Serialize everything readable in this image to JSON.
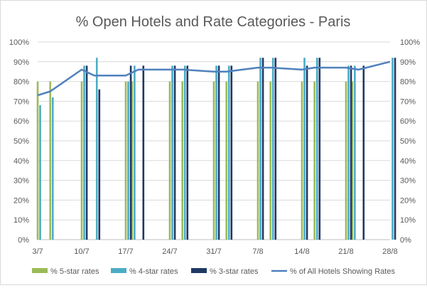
{
  "chart_data": {
    "type": "bar",
    "title": "% Open Hotels and Rate Categories - Paris",
    "xlabel": "",
    "ylabel": "",
    "ylim": [
      0,
      100
    ],
    "y_ticks": [
      "0%",
      "10%",
      "20%",
      "30%",
      "40%",
      "50%",
      "60%",
      "70%",
      "80%",
      "90%",
      "100%"
    ],
    "y_tick_values": [
      0,
      10,
      20,
      30,
      40,
      50,
      60,
      70,
      80,
      90,
      100
    ],
    "x_range": [
      3,
      59
    ],
    "x_tick_labels": [
      "3/7",
      "10/7",
      "17/7",
      "24/7",
      "31/7",
      "7/8",
      "14/8",
      "21/8",
      "28/8"
    ],
    "x_tick_positions": [
      3,
      10,
      17,
      24,
      31,
      38,
      45,
      52,
      59
    ],
    "legend_position": "bottom",
    "grid": true,
    "series": [
      {
        "name": "% 5-star rates",
        "type": "bar",
        "color": "#9bbb59",
        "points": [
          [
            3,
            80
          ],
          [
            5,
            80
          ],
          [
            10,
            80
          ],
          [
            17,
            80
          ],
          [
            18,
            80
          ],
          [
            24,
            80
          ],
          [
            26,
            80
          ],
          [
            31,
            80
          ],
          [
            33,
            80
          ],
          [
            38,
            80
          ],
          [
            40,
            80
          ],
          [
            45,
            80
          ],
          [
            47,
            80
          ],
          [
            52,
            80
          ],
          [
            53,
            80
          ]
        ]
      },
      {
        "name": "% 4-star rates",
        "type": "bar",
        "color": "#4bacc6",
        "points": [
          [
            3.4,
            68
          ],
          [
            5.4,
            72
          ],
          [
            10.4,
            88
          ],
          [
            12.4,
            92
          ],
          [
            17.4,
            80
          ],
          [
            18.4,
            88
          ],
          [
            24.4,
            88
          ],
          [
            26.4,
            88
          ],
          [
            31.4,
            88
          ],
          [
            33.4,
            88
          ],
          [
            38.4,
            92
          ],
          [
            40.4,
            92
          ],
          [
            45.4,
            92
          ],
          [
            47.4,
            92
          ],
          [
            52.4,
            88
          ],
          [
            53.4,
            88
          ],
          [
            59.4,
            92
          ]
        ]
      },
      {
        "name": "% 3-star rates",
        "type": "bar",
        "color": "#1f3864",
        "points": [
          [
            10.8,
            88
          ],
          [
            12.8,
            76
          ],
          [
            17.8,
            88
          ],
          [
            19.8,
            88
          ],
          [
            24.8,
            88
          ],
          [
            26.8,
            88
          ],
          [
            31.8,
            88
          ],
          [
            33.8,
            88
          ],
          [
            38.8,
            92
          ],
          [
            40.8,
            92
          ],
          [
            45.8,
            88
          ],
          [
            47.8,
            92
          ],
          [
            52.8,
            88
          ],
          [
            54.8,
            88
          ],
          [
            59.8,
            92
          ]
        ]
      },
      {
        "name": "% of All Hotels Showing Rates",
        "type": "line",
        "color": "#4f81bd",
        "points": [
          [
            3,
            73
          ],
          [
            5,
            75
          ],
          [
            10,
            86
          ],
          [
            12,
            83
          ],
          [
            17,
            83
          ],
          [
            19,
            86
          ],
          [
            24,
            86
          ],
          [
            26,
            86
          ],
          [
            31,
            85
          ],
          [
            33,
            85
          ],
          [
            38,
            87
          ],
          [
            40,
            87
          ],
          [
            45,
            86
          ],
          [
            47,
            87
          ],
          [
            52,
            87
          ],
          [
            54,
            86
          ],
          [
            59,
            90
          ]
        ]
      }
    ]
  }
}
